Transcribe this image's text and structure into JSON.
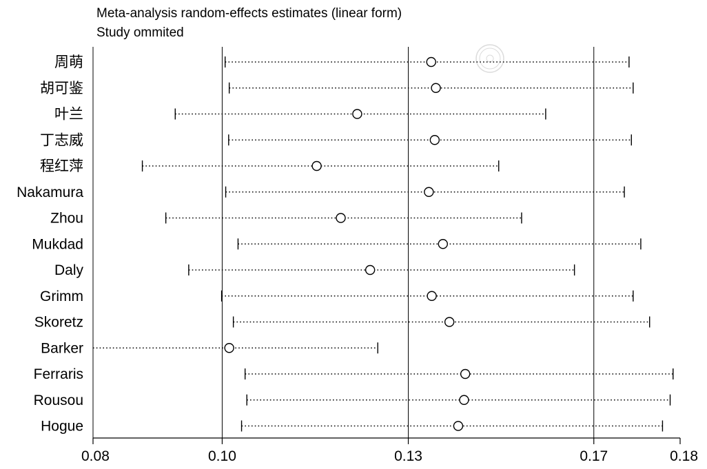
{
  "chart_data": {
    "type": "scatter",
    "title": "Meta-analysis random-effects estimates (linear form)",
    "subtitle": "Study ommited",
    "xlabel": "",
    "ylabel": "",
    "xlim": [
      0.08,
      0.18
    ],
    "x_ticks": [
      {
        "value": 0.08,
        "label": "0.08"
      },
      {
        "value": 0.102,
        "label": "0.10"
      },
      {
        "value": 0.1337,
        "label": "0.13"
      },
      {
        "value": 0.1653,
        "label": "0.17"
      },
      {
        "value": 0.18,
        "label": "0.18"
      }
    ],
    "reference_lines": [
      0.102,
      0.1337,
      0.1653
    ],
    "studies": [
      {
        "name": "周萌",
        "lower": 0.1025,
        "estimate": 0.1376,
        "upper": 0.1713
      },
      {
        "name": "胡可鉴",
        "lower": 0.1032,
        "estimate": 0.1384,
        "upper": 0.172
      },
      {
        "name": "叶兰",
        "lower": 0.094,
        "estimate": 0.125,
        "upper": 0.1571
      },
      {
        "name": "丁志威",
        "lower": 0.1031,
        "estimate": 0.1382,
        "upper": 0.1717
      },
      {
        "name": "程红萍",
        "lower": 0.0884,
        "estimate": 0.1181,
        "upper": 0.1491
      },
      {
        "name": "Nakamura",
        "lower": 0.1026,
        "estimate": 0.1372,
        "upper": 0.1705
      },
      {
        "name": "Zhou",
        "lower": 0.0924,
        "estimate": 0.1222,
        "upper": 0.153
      },
      {
        "name": "Mukdad",
        "lower": 0.1047,
        "estimate": 0.1396,
        "upper": 0.1733
      },
      {
        "name": "Daly",
        "lower": 0.0963,
        "estimate": 0.1272,
        "upper": 0.162
      },
      {
        "name": "Grimm",
        "lower": 0.1019,
        "estimate": 0.1377,
        "upper": 0.172
      },
      {
        "name": "Skoretz",
        "lower": 0.1039,
        "estimate": 0.1407,
        "upper": 0.1748
      },
      {
        "name": "Barker",
        "lower": 0.08,
        "estimate": 0.1032,
        "upper": 0.1285
      },
      {
        "name": "Ferraris",
        "lower": 0.1059,
        "estimate": 0.1434,
        "upper": 0.1788
      },
      {
        "name": "Rousou",
        "lower": 0.1062,
        "estimate": 0.1432,
        "upper": 0.1783
      },
      {
        "name": "Hogue",
        "lower": 0.1053,
        "estimate": 0.1422,
        "upper": 0.177
      }
    ],
    "grid": false,
    "legend": "none"
  }
}
